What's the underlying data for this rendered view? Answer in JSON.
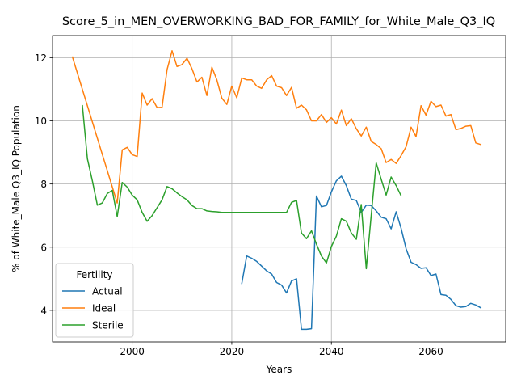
{
  "chart_data": {
    "type": "line",
    "title": "Score_5_in_MEN_OVERWORKING_BAD_FOR_FAMILY_for_White_Male_Q3_IQ",
    "xlabel": "Years",
    "ylabel": "% of White_Male Q3_IQ Population",
    "xlim": [
      1984,
      2075
    ],
    "ylim": [
      3.0,
      12.7
    ],
    "xticks": [
      2000,
      2020,
      2040,
      2060
    ],
    "yticks": [
      4,
      6,
      8,
      10,
      12
    ],
    "grid": true,
    "legend": {
      "title": "Fertility",
      "placement": "lower-left"
    },
    "series": [
      {
        "name": "Actual",
        "color": "#1f77b4",
        "points": [
          [
            2022,
            4.85
          ],
          [
            2023,
            5.72
          ],
          [
            2024,
            5.65
          ],
          [
            2025,
            5.55
          ],
          [
            2026,
            5.4
          ],
          [
            2027,
            5.25
          ],
          [
            2028,
            5.15
          ],
          [
            2029,
            4.88
          ],
          [
            2030,
            4.8
          ],
          [
            2031,
            4.55
          ],
          [
            2032,
            4.93
          ],
          [
            2033,
            5.0
          ],
          [
            2034,
            3.4
          ],
          [
            2035,
            3.4
          ],
          [
            2036,
            3.42
          ],
          [
            2037,
            7.62
          ],
          [
            2038,
            7.28
          ],
          [
            2039,
            7.32
          ],
          [
            2040,
            7.75
          ],
          [
            2041,
            8.1
          ],
          [
            2042,
            8.25
          ],
          [
            2043,
            7.95
          ],
          [
            2044,
            7.52
          ],
          [
            2045,
            7.48
          ],
          [
            2046,
            7.1
          ],
          [
            2047,
            7.33
          ],
          [
            2048,
            7.32
          ],
          [
            2049,
            7.15
          ],
          [
            2050,
            6.95
          ],
          [
            2051,
            6.9
          ],
          [
            2052,
            6.58
          ],
          [
            2053,
            7.12
          ],
          [
            2054,
            6.6
          ],
          [
            2055,
            5.95
          ],
          [
            2056,
            5.52
          ],
          [
            2057,
            5.45
          ],
          [
            2058,
            5.33
          ],
          [
            2059,
            5.35
          ],
          [
            2060,
            5.1
          ],
          [
            2061,
            5.15
          ],
          [
            2062,
            4.5
          ],
          [
            2063,
            4.48
          ],
          [
            2064,
            4.35
          ],
          [
            2065,
            4.15
          ],
          [
            2066,
            4.1
          ],
          [
            2067,
            4.12
          ],
          [
            2068,
            4.22
          ],
          [
            2069,
            4.17
          ],
          [
            2070,
            4.08
          ]
        ]
      },
      {
        "name": "Ideal",
        "color": "#ff7f0e",
        "points": [
          [
            1988,
            12.02
          ],
          [
            1997,
            7.4
          ],
          [
            1998,
            9.08
          ],
          [
            1999,
            9.16
          ],
          [
            2000,
            8.93
          ],
          [
            2001,
            8.87
          ],
          [
            2002,
            10.88
          ],
          [
            2003,
            10.5
          ],
          [
            2004,
            10.7
          ],
          [
            2005,
            10.42
          ],
          [
            2006,
            10.43
          ],
          [
            2007,
            11.62
          ],
          [
            2008,
            12.22
          ],
          [
            2009,
            11.72
          ],
          [
            2010,
            11.78
          ],
          [
            2011,
            11.98
          ],
          [
            2012,
            11.65
          ],
          [
            2013,
            11.23
          ],
          [
            2014,
            11.38
          ],
          [
            2015,
            10.8
          ],
          [
            2016,
            11.7
          ],
          [
            2017,
            11.3
          ],
          [
            2018,
            10.72
          ],
          [
            2019,
            10.52
          ],
          [
            2020,
            11.1
          ],
          [
            2021,
            10.73
          ],
          [
            2022,
            11.36
          ],
          [
            2023,
            11.3
          ],
          [
            2024,
            11.3
          ],
          [
            2025,
            11.1
          ],
          [
            2026,
            11.03
          ],
          [
            2027,
            11.3
          ],
          [
            2028,
            11.43
          ],
          [
            2029,
            11.1
          ],
          [
            2030,
            11.05
          ],
          [
            2031,
            10.8
          ],
          [
            2032,
            11.06
          ],
          [
            2033,
            10.4
          ],
          [
            2034,
            10.5
          ],
          [
            2035,
            10.35
          ],
          [
            2036,
            10.0
          ],
          [
            2037,
            10.0
          ],
          [
            2038,
            10.2
          ],
          [
            2039,
            9.95
          ],
          [
            2040,
            10.1
          ],
          [
            2041,
            9.9
          ],
          [
            2042,
            10.34
          ],
          [
            2043,
            9.85
          ],
          [
            2044,
            10.07
          ],
          [
            2045,
            9.75
          ],
          [
            2046,
            9.52
          ],
          [
            2047,
            9.8
          ],
          [
            2048,
            9.35
          ],
          [
            2049,
            9.25
          ],
          [
            2050,
            9.12
          ],
          [
            2051,
            8.68
          ],
          [
            2052,
            8.78
          ],
          [
            2053,
            8.65
          ],
          [
            2054,
            8.9
          ],
          [
            2055,
            9.18
          ],
          [
            2056,
            9.8
          ],
          [
            2057,
            9.5
          ],
          [
            2058,
            10.48
          ],
          [
            2059,
            10.18
          ],
          [
            2060,
            10.62
          ],
          [
            2061,
            10.45
          ],
          [
            2062,
            10.5
          ],
          [
            2063,
            10.15
          ],
          [
            2064,
            10.2
          ],
          [
            2065,
            9.72
          ],
          [
            2066,
            9.76
          ],
          [
            2067,
            9.83
          ],
          [
            2068,
            9.85
          ],
          [
            2069,
            9.3
          ],
          [
            2070,
            9.25
          ]
        ]
      },
      {
        "name": "Sterile",
        "color": "#2ca02c",
        "points": [
          [
            1990,
            10.48
          ],
          [
            1991,
            8.8
          ],
          [
            1992,
            8.1
          ],
          [
            1993,
            7.33
          ],
          [
            1994,
            7.4
          ],
          [
            1995,
            7.7
          ],
          [
            1996,
            7.8
          ],
          [
            1997,
            6.97
          ],
          [
            1998,
            8.05
          ],
          [
            1999,
            7.9
          ],
          [
            2000,
            7.65
          ],
          [
            2001,
            7.5
          ],
          [
            2002,
            7.1
          ],
          [
            2003,
            6.82
          ],
          [
            2004,
            7.0
          ],
          [
            2005,
            7.25
          ],
          [
            2006,
            7.5
          ],
          [
            2007,
            7.92
          ],
          [
            2008,
            7.85
          ],
          [
            2009,
            7.72
          ],
          [
            2010,
            7.6
          ],
          [
            2011,
            7.5
          ],
          [
            2012,
            7.32
          ],
          [
            2013,
            7.22
          ],
          [
            2014,
            7.22
          ],
          [
            2015,
            7.15
          ],
          [
            2016,
            7.13
          ],
          [
            2017,
            7.12
          ],
          [
            2018,
            7.1
          ],
          [
            2019,
            7.1
          ],
          [
            2020,
            7.1
          ],
          [
            2021,
            7.1
          ],
          [
            2022,
            7.1
          ],
          [
            2023,
            7.1
          ],
          [
            2024,
            7.1
          ],
          [
            2025,
            7.1
          ],
          [
            2026,
            7.1
          ],
          [
            2027,
            7.1
          ],
          [
            2028,
            7.1
          ],
          [
            2029,
            7.1
          ],
          [
            2030,
            7.1
          ],
          [
            2031,
            7.1
          ],
          [
            2032,
            7.42
          ],
          [
            2033,
            7.48
          ],
          [
            2034,
            6.45
          ],
          [
            2035,
            6.27
          ],
          [
            2036,
            6.52
          ],
          [
            2037,
            6.1
          ],
          [
            2038,
            5.72
          ],
          [
            2039,
            5.5
          ],
          [
            2040,
            6.02
          ],
          [
            2041,
            6.35
          ],
          [
            2042,
            6.9
          ],
          [
            2043,
            6.82
          ],
          [
            2044,
            6.45
          ],
          [
            2045,
            6.25
          ],
          [
            2046,
            7.35
          ],
          [
            2047,
            5.32
          ],
          [
            2048,
            7.0
          ],
          [
            2049,
            8.67
          ],
          [
            2050,
            8.15
          ],
          [
            2051,
            7.65
          ],
          [
            2052,
            8.22
          ],
          [
            2053,
            7.95
          ],
          [
            2054,
            7.63
          ]
        ]
      }
    ]
  }
}
